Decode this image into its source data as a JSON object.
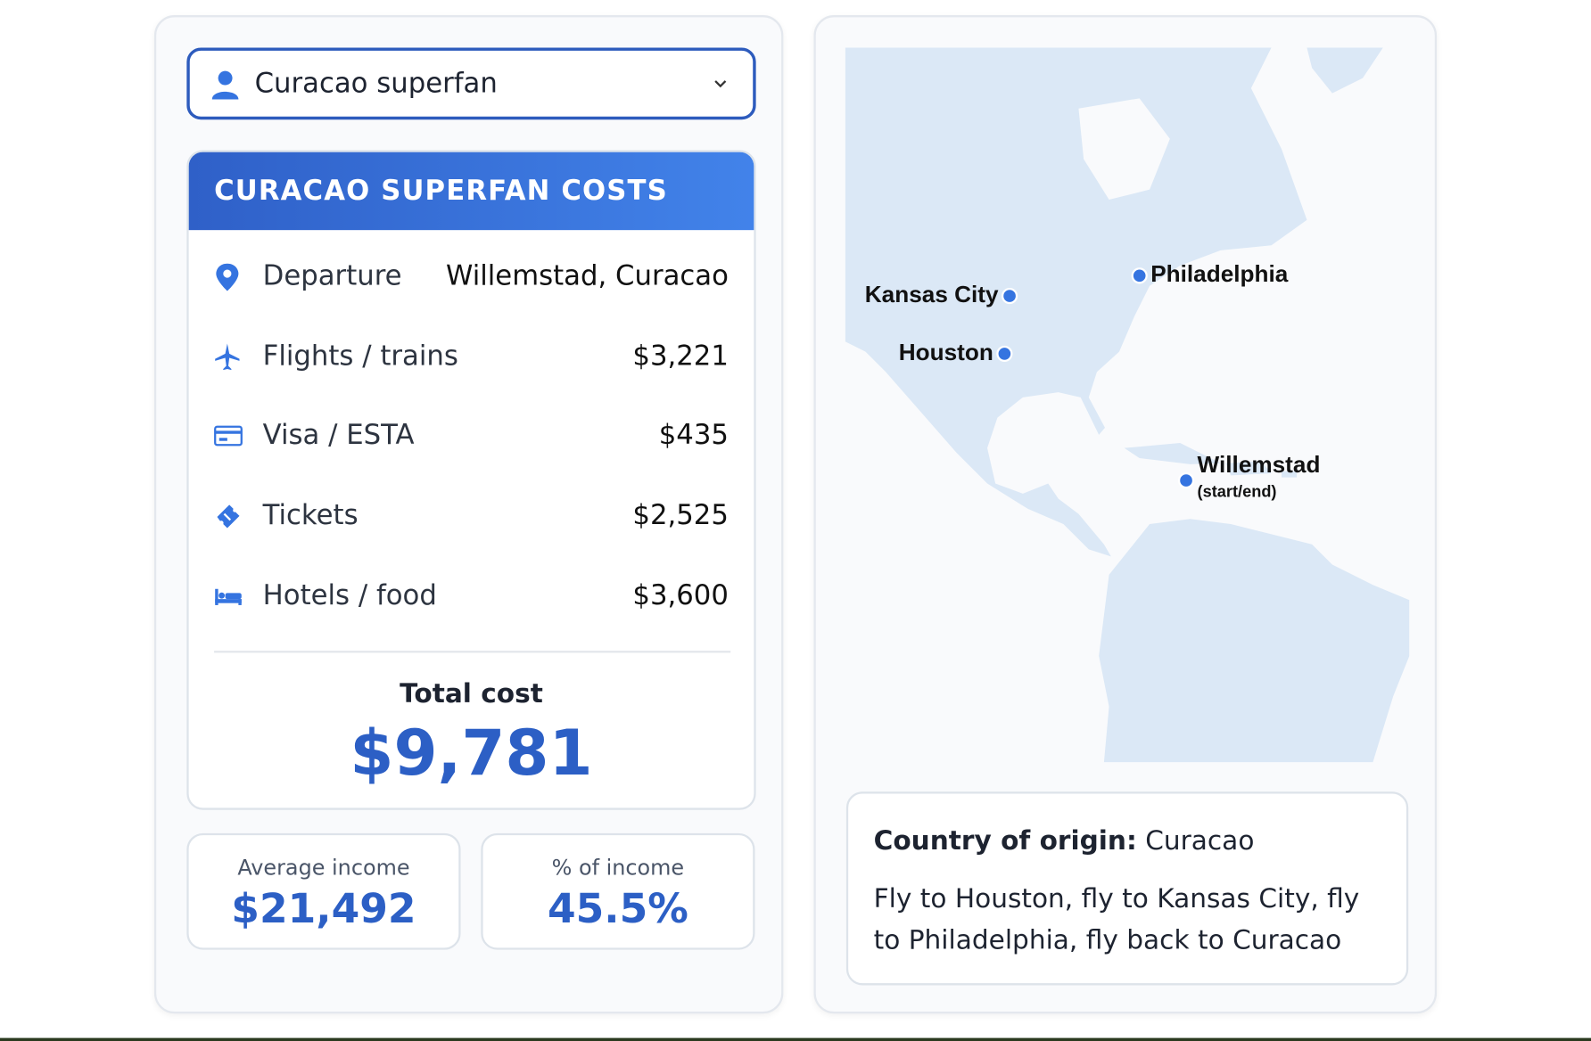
{
  "selector": {
    "label": "Curacao superfan"
  },
  "costs": {
    "title": "CURACAO SUPERFAN COSTS",
    "rows": [
      {
        "label": "Departure",
        "value": "Willemstad, Curacao"
      },
      {
        "label": "Flights / trains",
        "value": "$3,221"
      },
      {
        "label": "Visa / ESTA",
        "value": "$435"
      },
      {
        "label": "Tickets",
        "value": "$2,525"
      },
      {
        "label": "Hotels / food",
        "value": "$3,600"
      }
    ],
    "total_label": "Total cost",
    "total": "$9,781"
  },
  "stats": [
    {
      "label": "Average income",
      "value": "$21,492"
    },
    {
      "label": "% of income",
      "value": "45.5%"
    }
  ],
  "map": {
    "cities": [
      {
        "name": "Kansas City"
      },
      {
        "name": "Philadelphia"
      },
      {
        "name": "Houston"
      },
      {
        "name": "Willemstad",
        "note": "(start/end)"
      }
    ]
  },
  "info": {
    "origin_label": "Country of origin:",
    "origin": "Curacao",
    "route": "Fly to Houston, fly to Kansas City, fly to Philadelphia, fly back to Curacao"
  }
}
